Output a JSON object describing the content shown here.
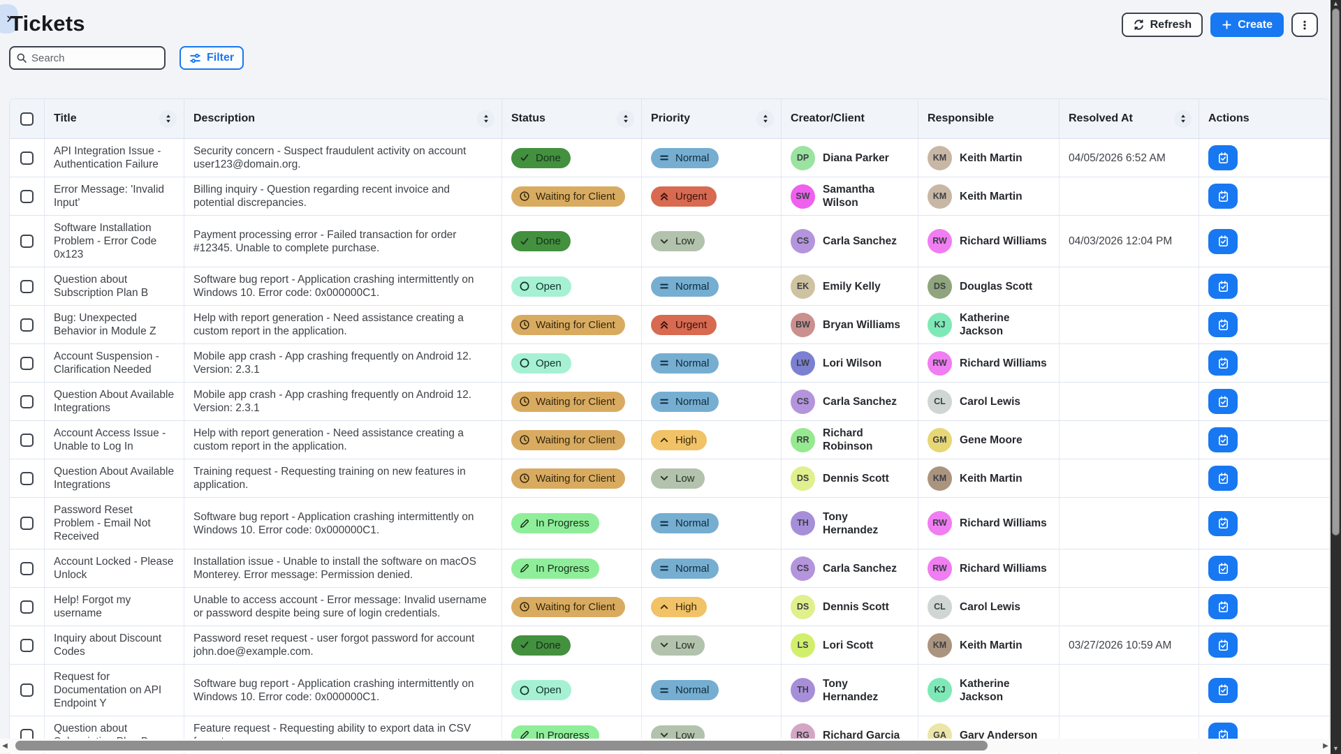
{
  "page": {
    "title": "Tickets"
  },
  "toolbar": {
    "search_placeholder": "Search",
    "filter_label": "Filter",
    "refresh_label": "Refresh",
    "create_label": "Create"
  },
  "colors": {
    "accent": "#1778f2",
    "page_bg": "#f2f4f8",
    "grid_line": "#dde4f0"
  },
  "status_styles": {
    "Done": {
      "bg": "#43903e",
      "fg": "#16301a",
      "icon": "check-icon"
    },
    "Waiting for Client": {
      "bg": "#d9ab60",
      "fg": "#33270f",
      "icon": "clock-icon"
    },
    "Open": {
      "bg": "#a6f1d3",
      "fg": "#11322a",
      "icon": "circle-icon"
    },
    "In Progress": {
      "bg": "#8fee99",
      "fg": "#143018",
      "icon": "pencil-icon"
    }
  },
  "priority_styles": {
    "Normal": {
      "bg": "#76aed2",
      "fg": "#0f2b3a",
      "icon": "equals-icon"
    },
    "Urgent": {
      "bg": "#d76a50",
      "fg": "#38130c",
      "icon": "chevrons-up-icon"
    },
    "High": {
      "bg": "#f1c266",
      "fg": "#3a2a0a",
      "icon": "chevron-up-icon"
    },
    "Low": {
      "bg": "#b2c2ac",
      "fg": "#273023",
      "icon": "chevron-down-icon"
    }
  },
  "table": {
    "columns": [
      {
        "label": "Title",
        "sortable": true
      },
      {
        "label": "Description",
        "sortable": true
      },
      {
        "label": "Status",
        "sortable": true
      },
      {
        "label": "Priority",
        "sortable": true
      },
      {
        "label": "Creator/Client",
        "sortable": false
      },
      {
        "label": "Responsible",
        "sortable": false
      },
      {
        "label": "Resolved At",
        "sortable": true
      },
      {
        "label": "Actions",
        "sortable": false
      }
    ],
    "rows": [
      {
        "title": "API Integration Issue - Authentication Failure",
        "description": "Security concern - Suspect fraudulent activity on account user123@domain.org.",
        "status": "Done",
        "priority": "Normal",
        "creator": {
          "name": "Diana Parker",
          "initials": "DP",
          "color": "#9ae3a0"
        },
        "responsible": {
          "name": "Keith Martin",
          "initials": "KM",
          "color": "#c9b7a5"
        },
        "resolved_at": "04/05/2026 6:52 AM"
      },
      {
        "title": "Error Message: 'Invalid Input'",
        "description": "Billing inquiry - Question regarding recent invoice and potential discrepancies.",
        "status": "Waiting for Client",
        "priority": "Urgent",
        "creator": {
          "name": "Samantha Wilson",
          "initials": "SW",
          "color": "#ef60ee"
        },
        "responsible": {
          "name": "Keith Martin",
          "initials": "KM",
          "color": "#c9b7a5"
        },
        "resolved_at": ""
      },
      {
        "title": "Software Installation Problem - Error Code 0x123",
        "description": "Payment processing error - Failed transaction for order #12345. Unable to complete purchase.",
        "status": "Done",
        "priority": "Low",
        "creator": {
          "name": "Carla Sanchez",
          "initials": "CS",
          "color": "#b494dc"
        },
        "responsible": {
          "name": "Richard Williams",
          "initials": "RW",
          "color": "#f07df2"
        },
        "resolved_at": "04/03/2026 12:04 PM"
      },
      {
        "title": "Question about Subscription Plan B",
        "description": "Software bug report - Application crashing intermittently on Windows 10. Error code: 0x000000C1.",
        "status": "Open",
        "priority": "Normal",
        "creator": {
          "name": "Emily Kelly",
          "initials": "EK",
          "color": "#cfc2a0"
        },
        "responsible": {
          "name": "Douglas Scott",
          "initials": "DS",
          "color": "#90a47e"
        },
        "resolved_at": ""
      },
      {
        "title": "Bug: Unexpected Behavior in Module Z",
        "description": "Help with report generation - Need assistance creating a custom report in the application.",
        "status": "Waiting for Client",
        "priority": "Urgent",
        "creator": {
          "name": "Bryan Williams",
          "initials": "BW",
          "color": "#ca908e"
        },
        "responsible": {
          "name": "Katherine Jackson",
          "initials": "KJ",
          "color": "#7ee9b7"
        },
        "resolved_at": ""
      },
      {
        "title": "Account Suspension - Clarification Needed",
        "description": "Mobile app crash - App crashing frequently on Android 12. Version: 2.3.1",
        "status": "Open",
        "priority": "Normal",
        "creator": {
          "name": "Lori Wilson",
          "initials": "LW",
          "color": "#7b80d1"
        },
        "responsible": {
          "name": "Richard Williams",
          "initials": "RW",
          "color": "#f07df2"
        },
        "resolved_at": ""
      },
      {
        "title": "Question About Available Integrations",
        "description": "Mobile app crash - App crashing frequently on Android 12. Version: 2.3.1",
        "status": "Waiting for Client",
        "priority": "Normal",
        "creator": {
          "name": "Carla Sanchez",
          "initials": "CS",
          "color": "#b494dc"
        },
        "responsible": {
          "name": "Carol Lewis",
          "initials": "CL",
          "color": "#cfd6d4"
        },
        "resolved_at": ""
      },
      {
        "title": "Account Access Issue - Unable to Log In",
        "description": "Help with report generation - Need assistance creating a custom report in the application.",
        "status": "Waiting for Client",
        "priority": "High",
        "creator": {
          "name": "Richard Robinson",
          "initials": "RR",
          "color": "#95e98e"
        },
        "responsible": {
          "name": "Gene Moore",
          "initials": "GM",
          "color": "#e7d675"
        },
        "resolved_at": ""
      },
      {
        "title": "Question About Available Integrations",
        "description": "Training request - Requesting training on new features in application.",
        "status": "Waiting for Client",
        "priority": "Low",
        "creator": {
          "name": "Dennis Scott",
          "initials": "DS",
          "color": "#dff08d"
        },
        "responsible": {
          "name": "Keith Martin",
          "initials": "KM",
          "color": "#ab947e"
        },
        "resolved_at": ""
      },
      {
        "title": "Password Reset Problem - Email Not Received",
        "description": "Software bug report - Application crashing intermittently on Windows 10. Error code: 0x000000C1.",
        "status": "In Progress",
        "priority": "Normal",
        "creator": {
          "name": "Tony Hernandez",
          "initials": "TH",
          "color": "#a78ed8"
        },
        "responsible": {
          "name": "Richard Williams",
          "initials": "RW",
          "color": "#f07df2"
        },
        "resolved_at": ""
      },
      {
        "title": "Account Locked - Please Unlock",
        "description": "Installation issue - Unable to install the software on macOS Monterey. Error message: Permission denied.",
        "status": "In Progress",
        "priority": "Normal",
        "creator": {
          "name": "Carla Sanchez",
          "initials": "CS",
          "color": "#b494dc"
        },
        "responsible": {
          "name": "Richard Williams",
          "initials": "RW",
          "color": "#f07df2"
        },
        "resolved_at": ""
      },
      {
        "title": "Help! Forgot my username",
        "description": "Unable to access account - Error message: Invalid username or password despite being sure of login credentials.",
        "status": "Waiting for Client",
        "priority": "High",
        "creator": {
          "name": "Dennis Scott",
          "initials": "DS",
          "color": "#dff08d"
        },
        "responsible": {
          "name": "Carol Lewis",
          "initials": "CL",
          "color": "#cfd6d4"
        },
        "resolved_at": ""
      },
      {
        "title": "Inquiry about Discount Codes",
        "description": "Password reset request - user forgot password for account john.doe@example.com.",
        "status": "Done",
        "priority": "Low",
        "creator": {
          "name": "Lori Scott",
          "initials": "LS",
          "color": "#d2ef6c"
        },
        "responsible": {
          "name": "Keith Martin",
          "initials": "KM",
          "color": "#ab947e"
        },
        "resolved_at": "03/27/2026 10:59 AM"
      },
      {
        "title": "Request for Documentation on API Endpoint Y",
        "description": "Software bug report - Application crashing intermittently on Windows 10. Error code: 0x000000C1.",
        "status": "Open",
        "priority": "Normal",
        "creator": {
          "name": "Tony Hernandez",
          "initials": "TH",
          "color": "#a78ed8"
        },
        "responsible": {
          "name": "Katherine Jackson",
          "initials": "KJ",
          "color": "#7ee9b7"
        },
        "resolved_at": ""
      },
      {
        "title": "Question about Subscription Plan B",
        "description": "Feature request - Requesting ability to export data in CSV format.",
        "status": "In Progress",
        "priority": "Low",
        "creator": {
          "name": "Richard Garcia",
          "initials": "RG",
          "color": "#d4a6c4"
        },
        "responsible": {
          "name": "Gary Anderson",
          "initials": "GA",
          "color": "#ece5a8"
        },
        "resolved_at": ""
      }
    ]
  }
}
